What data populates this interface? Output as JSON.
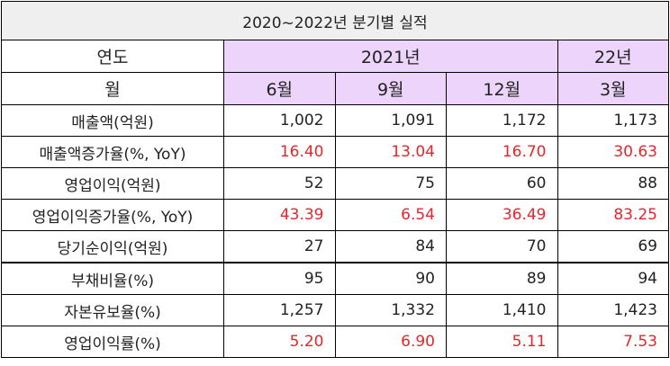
{
  "title": "2020~2022년 분기별 실적",
  "header": {
    "year_label": "연도",
    "year_2021": "2021년",
    "year_22": "22년",
    "month_label": "월",
    "months": [
      "6월",
      "9월",
      "12월",
      "3월"
    ]
  },
  "colors": {
    "header_bg": "#ecd4fb",
    "title_bg": "#efefef",
    "highlight_text": "#e3262d"
  },
  "rows": [
    {
      "label": "매출액(억원)",
      "values": [
        "1,002",
        "1,091",
        "1,172",
        "1,173"
      ],
      "red": false
    },
    {
      "label": "매출액증가율(%, YoY)",
      "values": [
        "16.40",
        "13.04",
        "16.70",
        "30.63"
      ],
      "red": true
    },
    {
      "label": "영업이익(억원)",
      "values": [
        "52",
        "75",
        "60",
        "88"
      ],
      "red": false
    },
    {
      "label": "영업이익증가율(%, YoY)",
      "values": [
        "43.39",
        "6.54",
        "36.49",
        "83.25"
      ],
      "red": true
    },
    {
      "label": "당기순이익(억원)",
      "values": [
        "27",
        "84",
        "70",
        "69"
      ],
      "red": false
    },
    {
      "label": "부채비율(%)",
      "values": [
        "95",
        "90",
        "89",
        "94"
      ],
      "red": false
    },
    {
      "label": "자본유보율(%)",
      "values": [
        "1,257",
        "1,332",
        "1,410",
        "1,423"
      ],
      "red": false
    },
    {
      "label": "영업이익률(%)",
      "values": [
        "5.20",
        "6.90",
        "5.11",
        "7.53"
      ],
      "red": true
    }
  ]
}
